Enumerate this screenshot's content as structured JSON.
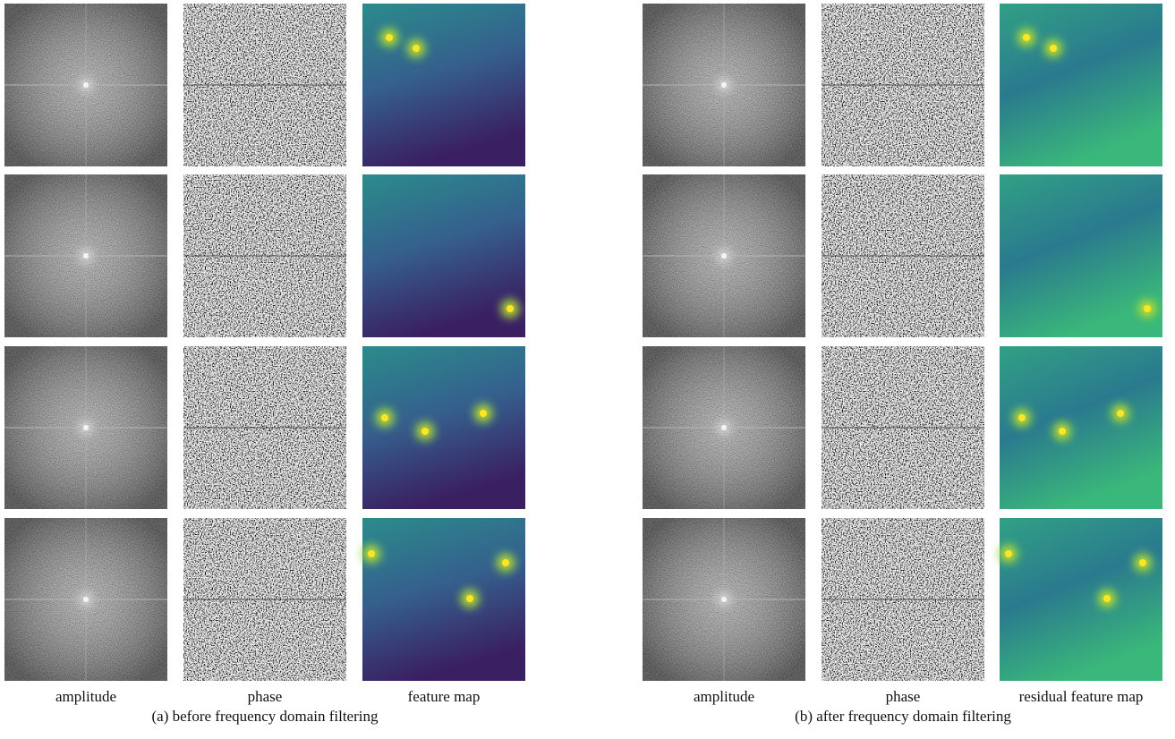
{
  "panels": [
    {
      "columns": [
        "amplitude",
        "phase",
        "feature map"
      ],
      "caption": "(a) before frequency domain filtering"
    },
    {
      "columns": [
        "amplitude",
        "phase",
        "residual feature map"
      ],
      "caption": "(b) after frequency domain filtering"
    }
  ]
}
